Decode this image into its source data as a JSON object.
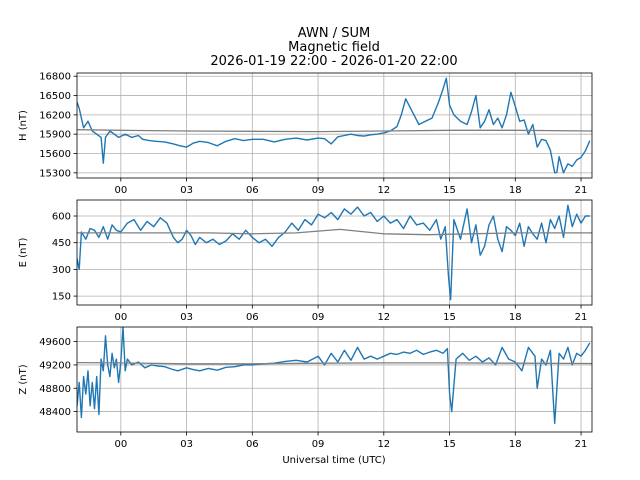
{
  "title_lines": [
    "AWN / SUM",
    "Magnetic field",
    "2026-01-19 22:00 - 2026-01-20 22:00"
  ],
  "xlabel": "Universal time (UTC)",
  "colors": {
    "data": "#1f77b4",
    "baseline": "#808080",
    "grid": "#b0b0b0"
  },
  "chart_data": [
    {
      "type": "line",
      "ylabel": "H (nT)",
      "xlim": [
        -2.0,
        21.5
      ],
      "ylim": [
        15220,
        16850
      ],
      "x_ticks": [
        0,
        3,
        6,
        9,
        12,
        15,
        18,
        21
      ],
      "x_tick_labels": [
        "00",
        "03",
        "06",
        "09",
        "12",
        "15",
        "18",
        "21"
      ],
      "y_ticks": [
        15300,
        15600,
        15900,
        16200,
        16500,
        16800
      ],
      "grid": true,
      "series": [
        {
          "role": "data",
          "x": [
            -2.0,
            -1.9,
            -1.7,
            -1.5,
            -1.3,
            -1.1,
            -0.9,
            -0.8,
            -0.7,
            -0.5,
            -0.3,
            -0.1,
            0.2,
            0.5,
            0.8,
            1.0,
            1.3,
            1.6,
            2.0,
            2.4,
            2.7,
            3.0,
            3.3,
            3.6,
            4.0,
            4.4,
            4.8,
            5.2,
            5.6,
            6.0,
            6.5,
            7.0,
            7.5,
            8.0,
            8.5,
            9.0,
            9.3,
            9.6,
            9.9,
            10.2,
            10.5,
            10.8,
            11.1,
            11.4,
            11.7,
            12.0,
            12.3,
            12.6,
            12.8,
            13.0,
            13.3,
            13.6,
            13.9,
            14.2,
            14.5,
            14.7,
            14.85,
            15.0,
            15.2,
            15.5,
            15.8,
            16.0,
            16.2,
            16.4,
            16.6,
            16.8,
            17.0,
            17.2,
            17.4,
            17.6,
            17.8,
            18.0,
            18.2,
            18.4,
            18.6,
            18.8,
            19.0,
            19.2,
            19.4,
            19.6,
            19.8,
            19.9,
            20.0,
            20.2,
            20.4,
            20.6,
            20.8,
            21.0,
            21.2,
            21.4
          ],
          "y": [
            16400,
            16300,
            16000,
            16100,
            15950,
            15900,
            15850,
            15450,
            15850,
            15950,
            15900,
            15850,
            15900,
            15850,
            15880,
            15820,
            15800,
            15790,
            15780,
            15750,
            15720,
            15700,
            15760,
            15790,
            15770,
            15720,
            15790,
            15830,
            15800,
            15820,
            15820,
            15780,
            15820,
            15840,
            15810,
            15840,
            15830,
            15750,
            15860,
            15880,
            15900,
            15880,
            15870,
            15890,
            15900,
            15920,
            15950,
            16020,
            16200,
            16450,
            16250,
            16050,
            16100,
            16150,
            16400,
            16600,
            16770,
            16350,
            16200,
            16100,
            16050,
            16250,
            16500,
            16000,
            16100,
            16280,
            16050,
            16150,
            16000,
            16200,
            16550,
            16330,
            16100,
            16120,
            15900,
            16050,
            15700,
            15820,
            15800,
            15650,
            15300,
            15310,
            15550,
            15300,
            15440,
            15400,
            15500,
            15540,
            15640,
            15800
          ]
        },
        {
          "role": "baseline",
          "x": [
            -2.0,
            0.0,
            3.0,
            6.0,
            9.0,
            12.0,
            15.0,
            18.0,
            21.5
          ],
          "y": [
            15970,
            15960,
            15950,
            15945,
            15940,
            15950,
            15960,
            15960,
            15950
          ]
        }
      ]
    },
    {
      "type": "line",
      "ylabel": "E (nT)",
      "xlim": [
        -2.0,
        21.5
      ],
      "ylim": [
        100,
        690
      ],
      "x_ticks": [
        0,
        3,
        6,
        9,
        12,
        15,
        18,
        21
      ],
      "x_tick_labels": [
        "00",
        "03",
        "06",
        "09",
        "12",
        "15",
        "18",
        "21"
      ],
      "y_ticks": [
        150,
        300,
        450,
        600
      ],
      "grid": true,
      "series": [
        {
          "role": "data",
          "x": [
            -2.0,
            -1.9,
            -1.8,
            -1.6,
            -1.4,
            -1.2,
            -1.0,
            -0.8,
            -0.6,
            -0.4,
            -0.2,
            0.0,
            0.3,
            0.6,
            0.9,
            1.2,
            1.5,
            1.8,
            2.1,
            2.4,
            2.6,
            2.8,
            3.0,
            3.2,
            3.4,
            3.6,
            3.9,
            4.2,
            4.5,
            4.8,
            5.1,
            5.4,
            5.7,
            6.0,
            6.3,
            6.6,
            6.9,
            7.2,
            7.5,
            7.8,
            8.1,
            8.4,
            8.7,
            9.0,
            9.3,
            9.6,
            9.9,
            10.2,
            10.5,
            10.8,
            11.1,
            11.4,
            11.7,
            12.0,
            12.3,
            12.6,
            12.9,
            13.2,
            13.5,
            13.8,
            14.1,
            14.4,
            14.6,
            14.8,
            14.95,
            15.05,
            15.2,
            15.5,
            15.8,
            16.0,
            16.2,
            16.4,
            16.6,
            16.8,
            17.0,
            17.2,
            17.4,
            17.6,
            17.8,
            18.0,
            18.2,
            18.4,
            18.6,
            18.8,
            19.0,
            19.2,
            19.4,
            19.6,
            19.8,
            20.0,
            20.2,
            20.4,
            20.6,
            20.8,
            21.0,
            21.2,
            21.4
          ],
          "y": [
            360,
            300,
            510,
            470,
            530,
            520,
            480,
            540,
            470,
            550,
            520,
            510,
            560,
            580,
            520,
            570,
            540,
            590,
            560,
            480,
            450,
            470,
            520,
            490,
            440,
            480,
            450,
            470,
            440,
            460,
            500,
            470,
            520,
            480,
            450,
            470,
            430,
            480,
            510,
            560,
            520,
            580,
            550,
            610,
            590,
            620,
            580,
            640,
            610,
            650,
            600,
            620,
            570,
            600,
            560,
            580,
            530,
            600,
            550,
            560,
            520,
            580,
            470,
            540,
            260,
            130,
            580,
            470,
            640,
            450,
            550,
            380,
            430,
            550,
            600,
            470,
            400,
            540,
            520,
            490,
            560,
            430,
            540,
            500,
            470,
            560,
            450,
            580,
            530,
            600,
            480,
            660,
            540,
            610,
            560,
            600,
            600
          ]
        },
        {
          "role": "baseline",
          "x": [
            -2.0,
            0.0,
            2.0,
            4.0,
            6.0,
            8.0,
            10.0,
            12.0,
            14.0,
            16.0,
            18.0,
            20.0,
            21.5
          ],
          "y": [
            505,
            505,
            505,
            505,
            500,
            505,
            525,
            500,
            495,
            500,
            505,
            505,
            505
          ]
        }
      ]
    },
    {
      "type": "line",
      "ylabel": "Z (nT)",
      "xlim": [
        -2.0,
        21.5
      ],
      "ylim": [
        48050,
        49850
      ],
      "x_ticks": [
        0,
        3,
        6,
        9,
        12,
        15,
        18,
        21
      ],
      "x_tick_labels": [
        "00",
        "03",
        "06",
        "09",
        "12",
        "15",
        "18",
        "21"
      ],
      "y_ticks": [
        48400,
        48800,
        49200,
        49600
      ],
      "grid": true,
      "series": [
        {
          "role": "data",
          "x": [
            -2.0,
            -1.9,
            -1.8,
            -1.7,
            -1.6,
            -1.5,
            -1.4,
            -1.3,
            -1.2,
            -1.1,
            -1.0,
            -0.9,
            -0.8,
            -0.7,
            -0.6,
            -0.5,
            -0.4,
            -0.3,
            -0.2,
            -0.1,
            0.0,
            0.1,
            0.2,
            0.3,
            0.5,
            0.8,
            1.1,
            1.4,
            1.7,
            2.0,
            2.3,
            2.6,
            3.0,
            3.3,
            3.6,
            4.0,
            4.4,
            4.8,
            5.2,
            5.6,
            6.0,
            6.5,
            7.0,
            7.5,
            8.0,
            8.5,
            9.0,
            9.3,
            9.6,
            9.9,
            10.2,
            10.5,
            10.8,
            11.1,
            11.4,
            11.7,
            12.0,
            12.3,
            12.6,
            12.9,
            13.2,
            13.5,
            13.8,
            14.1,
            14.4,
            14.7,
            14.9,
            15.0,
            15.1,
            15.3,
            15.6,
            15.9,
            16.2,
            16.5,
            16.8,
            17.1,
            17.4,
            17.7,
            18.0,
            18.3,
            18.6,
            18.9,
            19.0,
            19.2,
            19.4,
            19.6,
            19.7,
            19.8,
            20.0,
            20.2,
            20.4,
            20.6,
            20.8,
            21.0,
            21.2,
            21.4
          ],
          "y": [
            48500,
            48900,
            48300,
            49000,
            48700,
            49100,
            48500,
            48900,
            48450,
            49000,
            48350,
            49300,
            49100,
            49700,
            49200,
            49000,
            49400,
            49150,
            49300,
            48900,
            49250,
            49850,
            49100,
            49300,
            49200,
            49250,
            49150,
            49200,
            49180,
            49170,
            49130,
            49100,
            49150,
            49120,
            49100,
            49140,
            49110,
            49160,
            49170,
            49200,
            49200,
            49220,
            49230,
            49260,
            49280,
            49250,
            49350,
            49200,
            49400,
            49250,
            49450,
            49280,
            49500,
            49300,
            49350,
            49300,
            49350,
            49400,
            49380,
            49420,
            49400,
            49450,
            49380,
            49420,
            49450,
            49400,
            49480,
            48700,
            48400,
            49300,
            49400,
            49280,
            49350,
            49250,
            49320,
            49200,
            49500,
            49300,
            49250,
            49100,
            49500,
            49350,
            48800,
            49300,
            49200,
            49450,
            48800,
            48200,
            49400,
            49300,
            49500,
            49200,
            49400,
            49350,
            49450,
            49580
          ]
        },
        {
          "role": "baseline",
          "x": [
            -2.0,
            0.0,
            3.0,
            6.0,
            9.0,
            12.0,
            15.0,
            18.0,
            21.5
          ],
          "y": [
            49240,
            49235,
            49220,
            49220,
            49230,
            49235,
            49235,
            49230,
            49225
          ]
        }
      ]
    }
  ]
}
